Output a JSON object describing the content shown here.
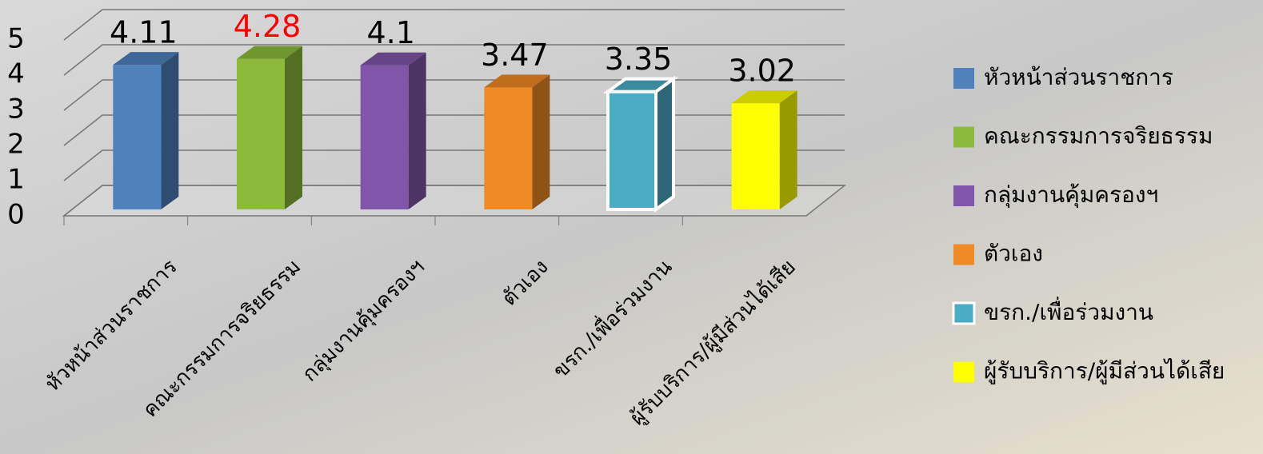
{
  "chart_data": {
    "type": "bar3d",
    "categories": [
      "หัวหน้าส่วนราชการ",
      "คณะกรรมการจริยธรรม",
      "กลุ่มงานคุ้มครองฯ",
      "ตัวเอง",
      "ขรก./เพื่อร่วมงาน",
      "ผู้รับบริการ/ผู้มีส่วนได้เสีย"
    ],
    "values": [
      4.11,
      4.28,
      4.1,
      3.47,
      3.35,
      3.02
    ],
    "colors": [
      "#4f81bd",
      "#8cbb3c",
      "#7f56a8",
      "#f08a24",
      "#4bacc6",
      "#ffff00"
    ],
    "value_label_colors": [
      "#000000",
      "#ff0000",
      "#000000",
      "#000000",
      "#000000",
      "#000000"
    ],
    "ylim": [
      0,
      5
    ],
    "yticks": [
      0,
      1,
      2,
      3,
      4,
      5
    ],
    "grid": true,
    "legend": "right"
  }
}
